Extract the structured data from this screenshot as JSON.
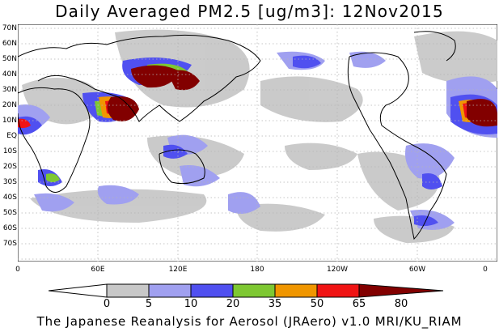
{
  "title": "Daily Averaged PM2.5 [ug/m3]: 12Nov2015",
  "footer": "The Japanese Reanalysis for Aerosol (JRAero) v1.0 MRI/KU_RIAM",
  "latitude_labels": [
    "70N",
    "60N",
    "50N",
    "40N",
    "30N",
    "20N",
    "10N",
    "EQ",
    "10S",
    "20S",
    "30S",
    "40S",
    "50S",
    "60S",
    "70S"
  ],
  "longitude_labels": [
    "0",
    "60E",
    "120E",
    "180",
    "120W",
    "60W",
    "0"
  ],
  "colorbar": {
    "boundaries": [
      "0",
      "5",
      "10",
      "20",
      "35",
      "50",
      "65",
      "80"
    ],
    "colors": [
      "#ffffff",
      "#c8c8c8",
      "#a0a0f0",
      "#5050f0",
      "#7ec832",
      "#f09600",
      "#f01414",
      "#820000"
    ]
  },
  "colors": {
    "land_outline": "#000000",
    "grid": "#b4b4b4",
    "max_class": "#820000"
  }
}
